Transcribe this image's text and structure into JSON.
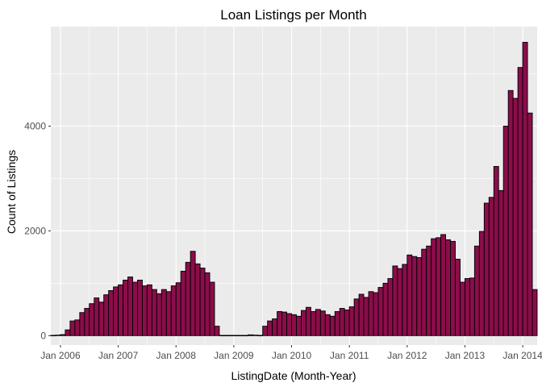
{
  "chart_data": {
    "type": "bar",
    "title": "Loan Listings per Month",
    "xlabel": "ListingDate (Month-Year)",
    "ylabel": "Count of Listings",
    "ylim": [
      -180,
      5900
    ],
    "grid": true,
    "x_ticks": [
      "Jan 2006",
      "Jan 2007",
      "Jan 2008",
      "Jan 2009",
      "Jan 2010",
      "Jan 2011",
      "Jan 2012",
      "Jan 2013",
      "Jan 2014"
    ],
    "y_ticks": [
      0,
      2000,
      4000
    ],
    "colors": {
      "bar_fill": "#8B0D4A",
      "bar_stroke": "#000000",
      "panel_bg": "#EBEBEB",
      "grid": "#FFFFFF",
      "axis_text": "#4D4D4D"
    },
    "series": [
      {
        "start": "2005-11",
        "values": [
          5,
          10,
          20,
          110,
          280,
          300,
          440,
          520,
          610,
          720,
          640,
          780,
          860,
          930,
          970,
          1060,
          1120,
          1020,
          1060,
          950,
          970,
          880,
          800,
          880,
          840,
          950,
          1010,
          1230,
          1400,
          1610,
          1370,
          1290,
          1200,
          1020,
          180,
          5,
          5,
          5,
          5,
          5,
          5,
          15,
          10,
          5,
          180,
          280,
          320,
          460,
          450,
          420,
          400,
          370,
          480,
          540,
          460,
          500,
          470,
          400,
          370,
          460,
          520,
          490,
          550,
          700,
          790,
          730,
          840,
          820,
          920,
          1000,
          1090,
          1330,
          1280,
          1360,
          1540,
          1510,
          1490,
          1650,
          1710,
          1850,
          1870,
          1930,
          1830,
          1800,
          1460,
          1020,
          1090,
          1100,
          1710,
          1990,
          2530,
          2640,
          3230,
          2770,
          4000,
          4680,
          4530,
          5120,
          5600,
          4250,
          880
        ]
      }
    ]
  }
}
